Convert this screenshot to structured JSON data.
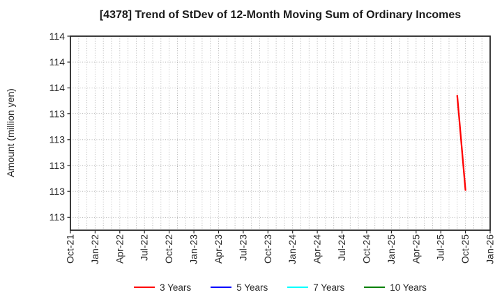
{
  "chart_data": {
    "type": "line",
    "title": "[4378]  Trend of StDev of 12-Month Moving Sum of Ordinary Incomes",
    "ylabel": "Amount (million yen)",
    "x_axis": {
      "tick_labels": [
        "Oct-21",
        "Jan-22",
        "Apr-22",
        "Jul-22",
        "Oct-22",
        "Jan-23",
        "Apr-23",
        "Jul-23",
        "Oct-23",
        "Jan-24",
        "Apr-24",
        "Jul-24",
        "Oct-24",
        "Jan-25",
        "Apr-25",
        "Jul-25",
        "Oct-25",
        "Jan-26"
      ],
      "tick_interval_months": 3,
      "months_total": 51,
      "range": "Oct-21 to Jan-26"
    },
    "y_axis": {
      "tick_labels_displayed": [
        "114",
        "114",
        "114",
        "113",
        "113",
        "113",
        "113",
        "113"
      ],
      "tick_values": [
        114.4,
        114.2,
        114.0,
        113.8,
        113.6,
        113.4,
        113.2,
        113.0
      ],
      "ylim": [
        112.9,
        114.4
      ]
    },
    "grid": true,
    "legend_position": "bottom",
    "series": [
      {
        "name": "3 Years",
        "color": "#ff0000",
        "points": [
          {
            "month": "Sep-25",
            "month_index": 47,
            "value": 113.94
          },
          {
            "month": "Oct-25",
            "month_index": 48,
            "value": 113.21
          }
        ]
      },
      {
        "name": "5 Years",
        "color": "#0000ff",
        "points": []
      },
      {
        "name": "7 Years",
        "color": "#00ffff",
        "points": []
      },
      {
        "name": "10 Years",
        "color": "#008000",
        "points": []
      }
    ]
  }
}
